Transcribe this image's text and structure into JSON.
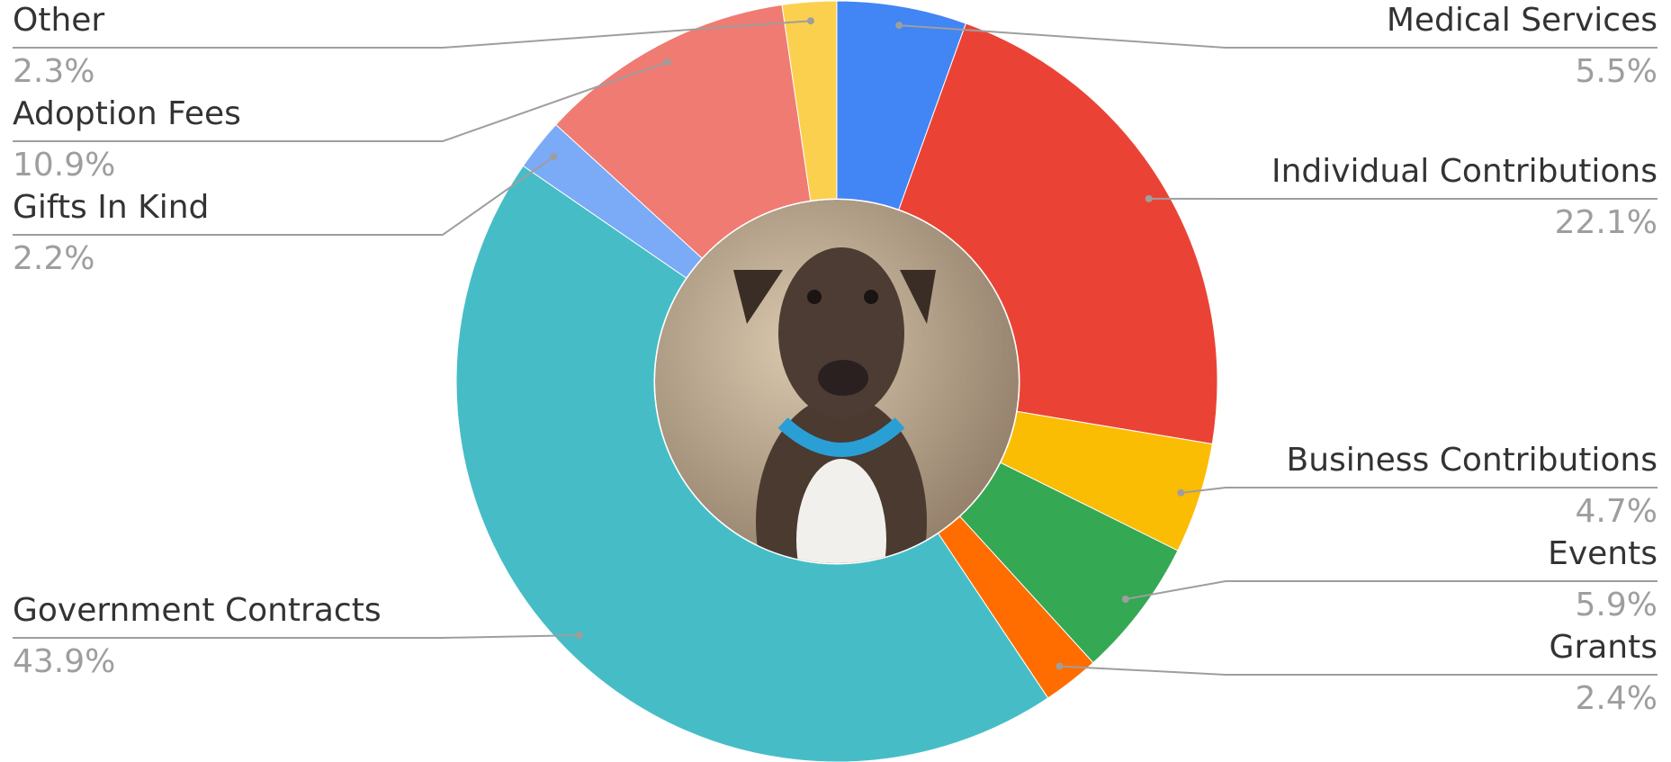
{
  "chart_data": {
    "type": "donut",
    "categories": [
      "Medical Services",
      "Individual Contributions",
      "Business Contributions",
      "Events",
      "Grants",
      "Government Contracts",
      "Gifts In Kind",
      "Adoption Fees",
      "Other"
    ],
    "values": [
      5.5,
      22.1,
      4.7,
      5.9,
      2.4,
      43.9,
      2.2,
      10.9,
      2.3
    ],
    "value_labels": [
      "5.5%",
      "22.1%",
      "4.7%",
      "5.9%",
      "2.4%",
      "43.9%",
      "2.2%",
      "10.9%",
      "2.3%"
    ],
    "colors": [
      "#4285f4",
      "#ea4335",
      "#fbbc04",
      "#34a853",
      "#ff6d01",
      "#46bdc6",
      "#7baaf7",
      "#f07b72",
      "#fcd04f"
    ]
  }
}
